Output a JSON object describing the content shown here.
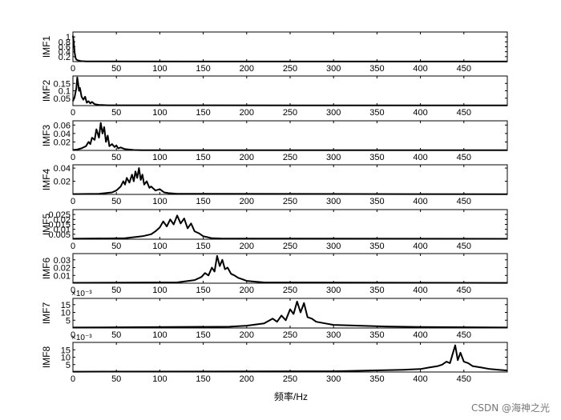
{
  "xlabel": "频率/Hz",
  "watermark": "CSDN @海神之光",
  "chart_data": {
    "type": "line",
    "xlim": [
      0,
      500
    ],
    "xticks": [
      0,
      50,
      100,
      150,
      200,
      250,
      300,
      350,
      400,
      450
    ],
    "grid": false,
    "line_color": "#000000",
    "panels": [
      {
        "ylabel": "IMF1",
        "ylim": [
          0,
          1.2
        ],
        "yticks": [
          0.2,
          0.4,
          0.6,
          0.8,
          1
        ],
        "ytick_labels": [
          "0.2",
          "0.4",
          "0.6",
          "0.8",
          "1"
        ],
        "exponent": "",
        "x": [
          0,
          1,
          2,
          3,
          4,
          6,
          8,
          10,
          15,
          20,
          500
        ],
        "y": [
          1.05,
          0.75,
          0.35,
          0.15,
          0.08,
          0.05,
          0.03,
          0.02,
          0.01,
          0.005,
          0.003
        ]
      },
      {
        "ylabel": "IMF2",
        "ylim": [
          0,
          0.2
        ],
        "yticks": [
          0.05,
          0.1,
          0.15
        ],
        "ytick_labels": [
          "0.05",
          "0.1",
          "0.15"
        ],
        "exponent": "",
        "x": [
          0,
          2,
          4,
          5,
          6,
          7,
          8,
          10,
          12,
          14,
          16,
          18,
          20,
          22,
          25,
          30,
          40,
          500
        ],
        "y": [
          0.03,
          0.06,
          0.12,
          0.19,
          0.15,
          0.1,
          0.12,
          0.06,
          0.04,
          0.06,
          0.02,
          0.03,
          0.015,
          0.025,
          0.01,
          0.005,
          0.002,
          0.001
        ]
      },
      {
        "ylabel": "IMF3",
        "ylim": [
          0,
          0.07
        ],
        "yticks": [
          0.02,
          0.04,
          0.06
        ],
        "ytick_labels": [
          "0.02",
          "0.04",
          "0.06"
        ],
        "exponent": "",
        "x": [
          0,
          5,
          10,
          15,
          18,
          20,
          22,
          25,
          27,
          30,
          32,
          34,
          36,
          38,
          40,
          42,
          45,
          48,
          50,
          52,
          55,
          60,
          70,
          80,
          500
        ],
        "y": [
          0.001,
          0.002,
          0.005,
          0.01,
          0.02,
          0.015,
          0.03,
          0.025,
          0.05,
          0.03,
          0.065,
          0.04,
          0.055,
          0.02,
          0.035,
          0.01,
          0.015,
          0.008,
          0.012,
          0.005,
          0.007,
          0.003,
          0.001,
          0.0005,
          0.0003
        ]
      },
      {
        "ylabel": "IMF4",
        "ylim": [
          0,
          0.045
        ],
        "yticks": [
          0.02,
          0.04
        ],
        "ytick_labels": [
          "0.02",
          "0.04"
        ],
        "exponent": "",
        "x": [
          0,
          30,
          45,
          50,
          55,
          58,
          60,
          62,
          65,
          68,
          70,
          72,
          74,
          76,
          78,
          80,
          82,
          85,
          88,
          90,
          95,
          100,
          105,
          110,
          120,
          500
        ],
        "y": [
          0.0005,
          0.001,
          0.003,
          0.006,
          0.012,
          0.02,
          0.015,
          0.025,
          0.018,
          0.03,
          0.02,
          0.035,
          0.025,
          0.04,
          0.022,
          0.03,
          0.015,
          0.02,
          0.01,
          0.012,
          0.006,
          0.008,
          0.003,
          0.002,
          0.001,
          0.0003
        ]
      },
      {
        "ylabel": "IMF5",
        "ylim": [
          0,
          0.03
        ],
        "yticks": [
          0.005,
          0.01,
          0.015,
          0.02,
          0.025
        ],
        "ytick_labels": [
          "0.005",
          "0.01",
          "0.015",
          "0.02",
          "0.025"
        ],
        "exponent": "",
        "x": [
          0,
          60,
          80,
          90,
          95,
          100,
          104,
          108,
          112,
          116,
          120,
          124,
          128,
          132,
          136,
          140,
          145,
          150,
          155,
          160,
          170,
          500
        ],
        "y": [
          0.0005,
          0.001,
          0.003,
          0.005,
          0.008,
          0.012,
          0.018,
          0.013,
          0.02,
          0.015,
          0.024,
          0.016,
          0.021,
          0.011,
          0.016,
          0.008,
          0.006,
          0.003,
          0.002,
          0.001,
          0.0007,
          0.0004
        ]
      },
      {
        "ylabel": "IMF6",
        "ylim": [
          0,
          0.038
        ],
        "yticks": [
          0.01,
          0.02,
          0.03
        ],
        "ytick_labels": [
          "0.01",
          "0.02",
          "0.03"
        ],
        "exponent": "",
        "x": [
          0,
          120,
          140,
          148,
          152,
          156,
          160,
          163,
          166,
          169,
          172,
          175,
          178,
          182,
          186,
          190,
          195,
          200,
          210,
          220,
          500
        ],
        "y": [
          0.0005,
          0.001,
          0.004,
          0.008,
          0.013,
          0.01,
          0.02,
          0.015,
          0.035,
          0.022,
          0.03,
          0.018,
          0.02,
          0.012,
          0.01,
          0.007,
          0.005,
          0.003,
          0.002,
          0.001,
          0.0004
        ]
      },
      {
        "ylabel": "IMF7",
        "ylim": [
          0,
          0.019
        ],
        "yticks": [
          0.005,
          0.01,
          0.015
        ],
        "ytick_labels": [
          "5",
          "10",
          "15"
        ],
        "exponent": "×10⁻³",
        "x": [
          0,
          180,
          200,
          220,
          230,
          235,
          240,
          245,
          250,
          254,
          258,
          262,
          266,
          270,
          275,
          280,
          290,
          300,
          330,
          360,
          400,
          500
        ],
        "y": [
          0.0003,
          0.0008,
          0.0015,
          0.003,
          0.006,
          0.004,
          0.008,
          0.005,
          0.012,
          0.009,
          0.017,
          0.01,
          0.016,
          0.007,
          0.006,
          0.004,
          0.003,
          0.002,
          0.0015,
          0.001,
          0.0006,
          0.0003
        ]
      },
      {
        "ylabel": "IMF8",
        "ylim": [
          0,
          0.02
        ],
        "yticks": [
          0.005,
          0.01,
          0.015
        ],
        "ytick_labels": [
          "5",
          "10",
          "15"
        ],
        "exponent": "×10⁻³",
        "x": [
          0,
          300,
          380,
          400,
          410,
          420,
          425,
          430,
          434,
          437,
          440,
          443,
          446,
          450,
          455,
          460,
          470,
          480,
          490,
          500
        ],
        "y": [
          0.0002,
          0.0005,
          0.0015,
          0.002,
          0.003,
          0.004,
          0.005,
          0.007,
          0.006,
          0.012,
          0.018,
          0.008,
          0.013,
          0.007,
          0.006,
          0.004,
          0.003,
          0.002,
          0.0015,
          0.001
        ]
      }
    ]
  }
}
